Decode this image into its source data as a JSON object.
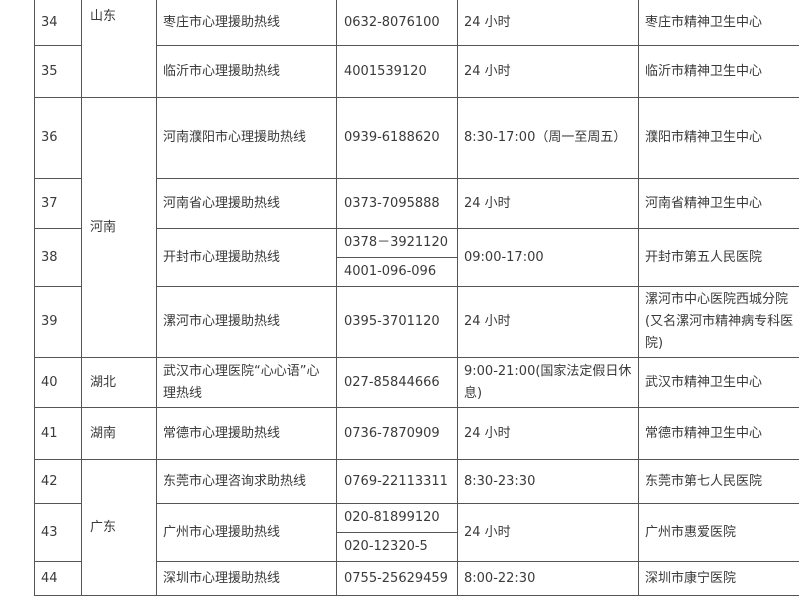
{
  "rows": [
    {
      "no": "34",
      "name": "枣庄市心理援助热线",
      "phones": [
        "0632-8076100"
      ],
      "hours": "24 小时",
      "org": "枣庄市精神卫生中心"
    },
    {
      "no": "35",
      "name": "临沂市心理援助热线",
      "phones": [
        "4001539120"
      ],
      "hours": "24 小时",
      "org": "临沂市精神卫生中心"
    },
    {
      "no": "36",
      "name": "河南濮阳市心理援助热线",
      "phones": [
        "0939-6188620"
      ],
      "hours": "8:30-17:00（周一至周五）",
      "org": "濮阳市精神卫生中心"
    },
    {
      "no": "37",
      "name": "河南省心理援助热线",
      "phones": [
        "0373-7095888"
      ],
      "hours": "24 小时",
      "org": "河南省精神卫生中心"
    },
    {
      "no": "38",
      "name": "开封市心理援助热线",
      "phones": [
        "0378－3921120",
        "4001-096-096"
      ],
      "hours": "09:00-17:00",
      "org": "开封市第五人民医院"
    },
    {
      "no": "39",
      "name": "漯河市心理援助热线",
      "phones": [
        "0395-3701120"
      ],
      "hours": "24 小时",
      "org": "漯河市中心医院西城分院(又名漯河市精神病专科医院)"
    },
    {
      "no": "40",
      "name": "武汉市心理医院“心心语”心理热线",
      "phones": [
        "027-85844666"
      ],
      "hours": "9:00-21:00(国家法定假日休息)",
      "org": "武汉市精神卫生中心"
    },
    {
      "no": "41",
      "name": "常德市心理援助热线",
      "phones": [
        "0736-7870909"
      ],
      "hours": "24 小时",
      "org": "常德市精神卫生中心"
    },
    {
      "no": "42",
      "name": "东莞市心理咨询求助热线",
      "phones": [
        "0769-22113311"
      ],
      "hours": "8:30-23:30",
      "org": "东莞市第七人民医院"
    },
    {
      "no": "43",
      "name": "广州市心理援助热线",
      "phones": [
        "020-81899120",
        "020-12320-5"
      ],
      "hours": "24 小时",
      "org": "广州市惠爱医院"
    },
    {
      "no": "44",
      "name": "深圳市心理援助热线",
      "phones": [
        "0755-25629459"
      ],
      "hours": "8:00-22:30",
      "org": "深圳市康宁医院"
    }
  ],
  "provinces": [
    {
      "name": "山东",
      "span": [
        0,
        1
      ]
    },
    {
      "name": "河南",
      "span": [
        2,
        5
      ]
    },
    {
      "name": "湖北",
      "span": [
        6,
        6
      ]
    },
    {
      "name": "湖南",
      "span": [
        7,
        7
      ]
    },
    {
      "name": "广东",
      "span": [
        8,
        10
      ]
    }
  ]
}
